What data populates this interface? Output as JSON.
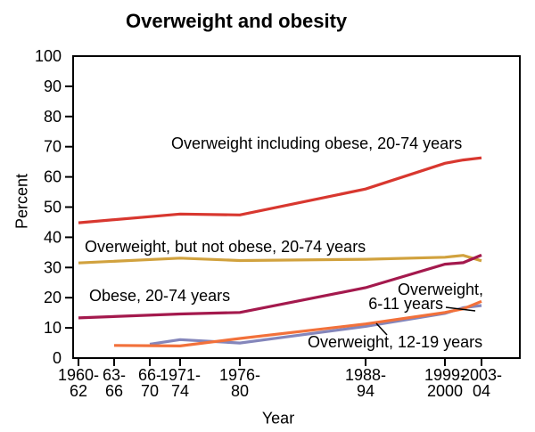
{
  "title": "Overweight and obesity",
  "chart_data": {
    "type": "line",
    "title": "Overweight and obesity",
    "xlabel": "Year",
    "ylabel": "Percent",
    "ylim": [
      0,
      100
    ],
    "ytick_step": 10,
    "grid": false,
    "legend_position": "inline-annotations",
    "axis_color": "#000000",
    "xticks": [
      {
        "label1": "1960-",
        "label2": "62",
        "year": 1961,
        "pos": 0.012
      },
      {
        "label1": "63-",
        "label2": "66",
        "year": 1964.5,
        "pos": 0.0918
      },
      {
        "label1": "66-",
        "label2": "70",
        "year": 1968,
        "pos": 0.1717
      },
      {
        "label1": "1971-",
        "label2": "74",
        "year": 1972.5,
        "pos": 0.2395
      },
      {
        "label1": "1976-",
        "label2": "80",
        "year": 1978,
        "pos": 0.3732
      },
      {
        "label1": "1988-",
        "label2": "94",
        "year": 1991,
        "pos": 0.6547
      },
      {
        "label1": "1999-",
        "label2": "2000",
        "year": 1999.5,
        "pos": 0.8323
      },
      {
        "label1": "2003-",
        "label2": "04",
        "year": 2003.5,
        "pos": 0.9142
      }
    ],
    "series": [
      {
        "name": "Overweight including obese, 20-74 years",
        "color": "#d8372f",
        "points": [
          [
            1961,
            44.8
          ],
          [
            1972.5,
            47.7
          ],
          [
            1978,
            47.4
          ],
          [
            1991,
            56.0
          ],
          [
            1999.5,
            64.5
          ],
          [
            2001.5,
            65.6
          ],
          [
            2003.5,
            66.3
          ]
        ]
      },
      {
        "name": "Overweight, but not obese, 20-74 years",
        "color": "#d1a23e",
        "points": [
          [
            1961,
            31.5
          ],
          [
            1972.5,
            33.1
          ],
          [
            1978,
            32.3
          ],
          [
            1991,
            32.7
          ],
          [
            1999.5,
            33.4
          ],
          [
            2001.5,
            34.0
          ],
          [
            2003.5,
            32.2
          ]
        ]
      },
      {
        "name": "Overweight, 12-19 years",
        "color": "#8486bb",
        "points": [
          [
            1968,
            4.6
          ],
          [
            1972.5,
            6.1
          ],
          [
            1978,
            5.0
          ],
          [
            1991,
            10.5
          ],
          [
            1999.5,
            14.8
          ],
          [
            2001.5,
            16.7
          ],
          [
            2003.5,
            17.4
          ]
        ]
      },
      {
        "name": "Overweight, 6-11 years",
        "color": "#f2713b",
        "points": [
          [
            1964.5,
            4.2
          ],
          [
            1972.5,
            4.0
          ],
          [
            1978,
            6.5
          ],
          [
            1991,
            11.3
          ],
          [
            1999.5,
            15.1
          ],
          [
            2001.5,
            16.3
          ],
          [
            2003.5,
            18.8
          ]
        ]
      },
      {
        "name": "Obese, 20-74 years",
        "color": "#a4194d",
        "points": [
          [
            1961,
            13.3
          ],
          [
            1972.5,
            14.6
          ],
          [
            1978,
            15.1
          ],
          [
            1991,
            23.3
          ],
          [
            1999.5,
            31.1
          ],
          [
            2001.5,
            31.6
          ],
          [
            2003.5,
            34.1
          ]
        ]
      }
    ],
    "annotations": [
      {
        "text": "Overweight including obese, 20-74 years"
      },
      {
        "text": "Overweight, but not obese, 20-74 years"
      },
      {
        "text": "Obese, 20-74 years"
      },
      {
        "text": "Overweight,"
      },
      {
        "text": "6-11 years"
      },
      {
        "text": "Overweight, 12-19 years"
      }
    ]
  }
}
